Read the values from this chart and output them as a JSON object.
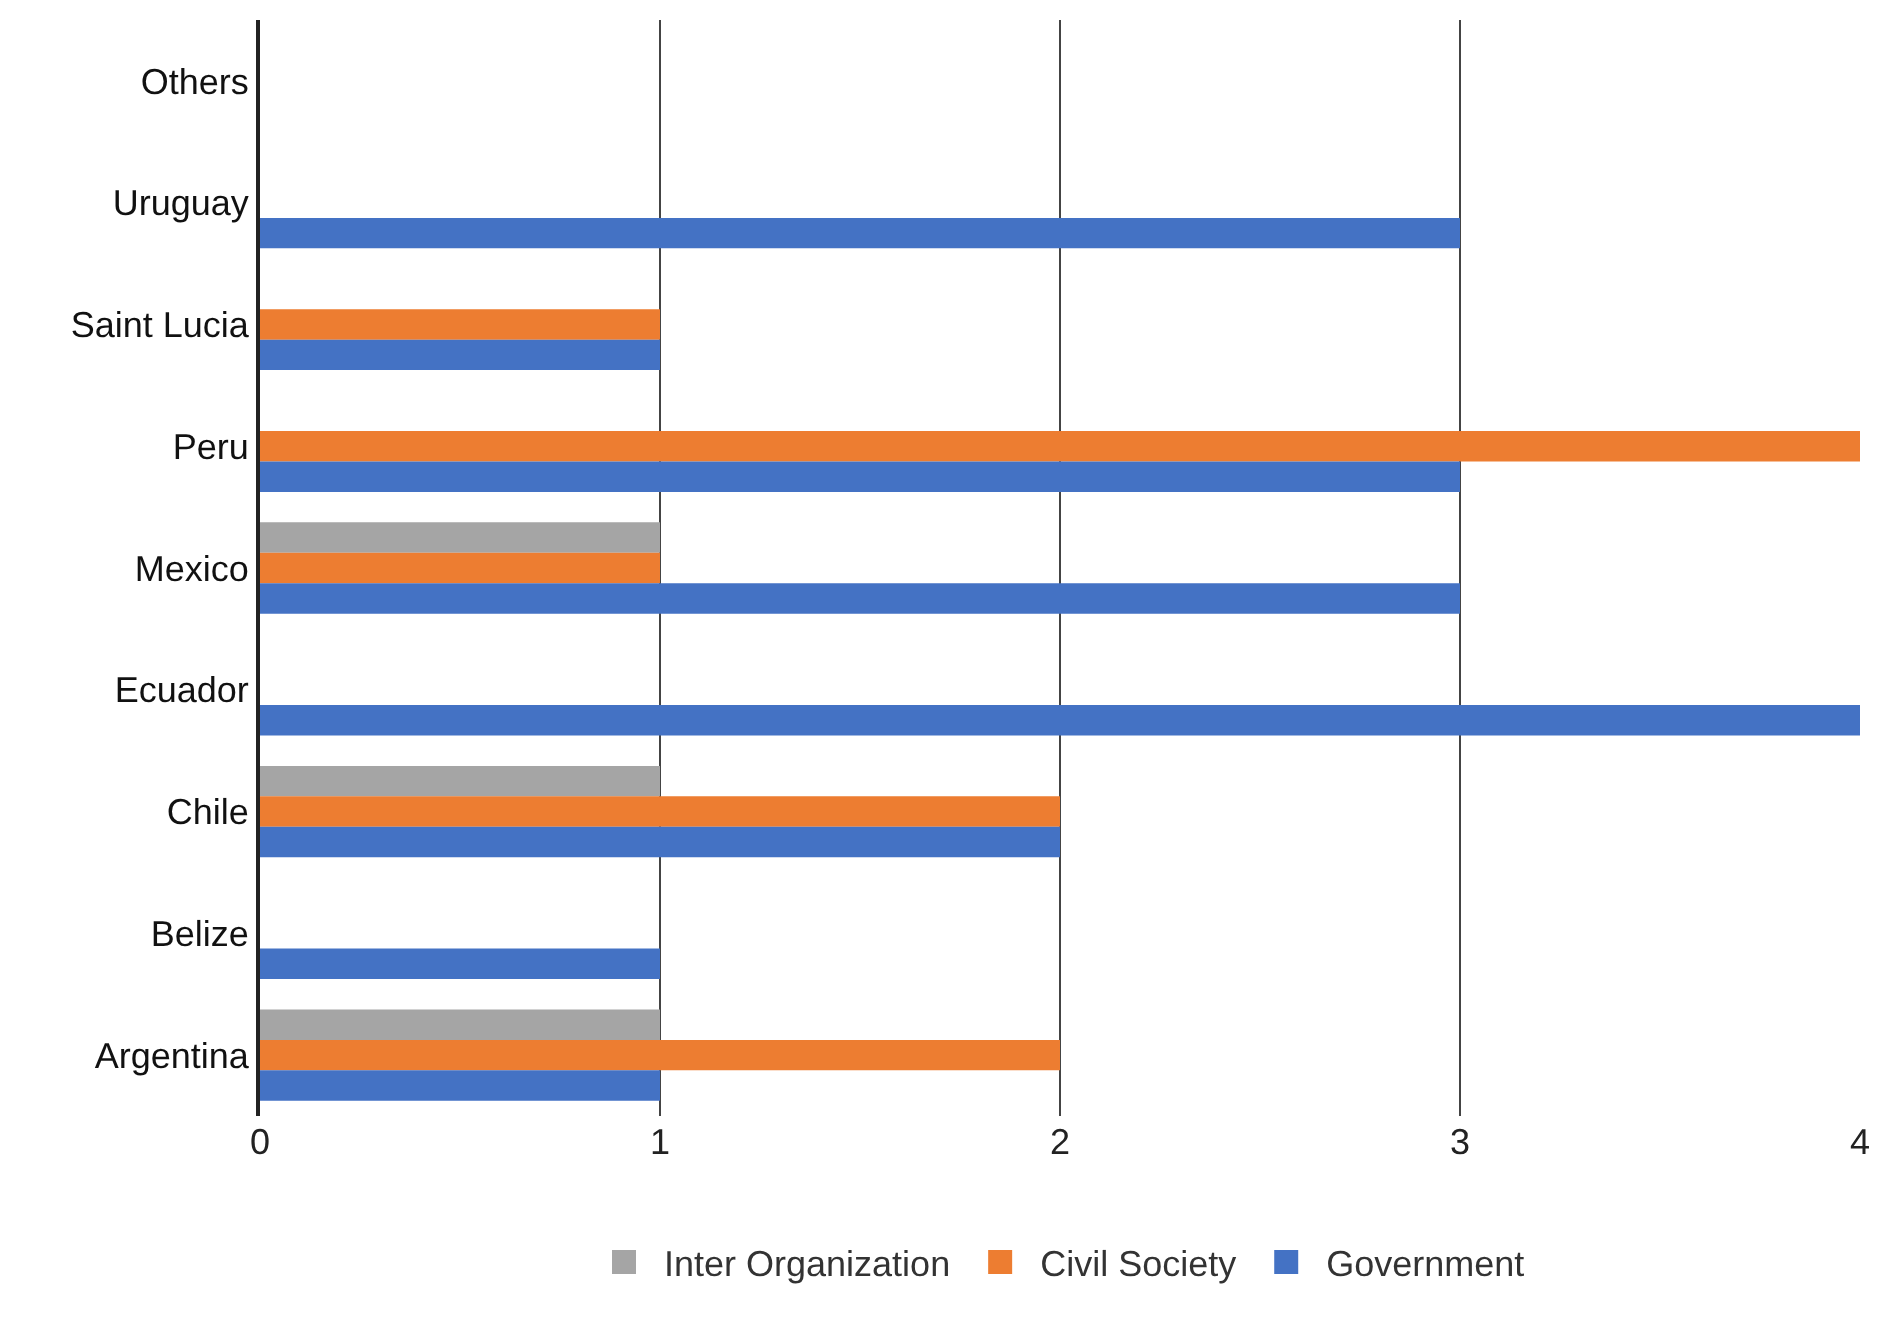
{
  "chart_data": {
    "type": "bar",
    "orientation": "horizontal",
    "categories": [
      "Others",
      "Uruguay",
      "Saint Lucia",
      "Peru",
      "Mexico",
      "Ecuador",
      "Chile",
      "Belize",
      "Argentina"
    ],
    "series": [
      {
        "name": "Inter Organization",
        "color": "#a5a5a5",
        "values": [
          null,
          null,
          null,
          null,
          1,
          null,
          1,
          null,
          1
        ]
      },
      {
        "name": "Civil Society",
        "color": "#ed7d31",
        "values": [
          null,
          null,
          1,
          4,
          1,
          null,
          2,
          null,
          2
        ]
      },
      {
        "name": "Government",
        "color": "#4472c4",
        "values": [
          null,
          3,
          1,
          3,
          3,
          4,
          2,
          1,
          1
        ]
      }
    ],
    "xlim": [
      0,
      4
    ],
    "xticks": [
      0,
      1,
      2,
      3,
      4
    ],
    "grid": "x",
    "legend": "bottom"
  }
}
